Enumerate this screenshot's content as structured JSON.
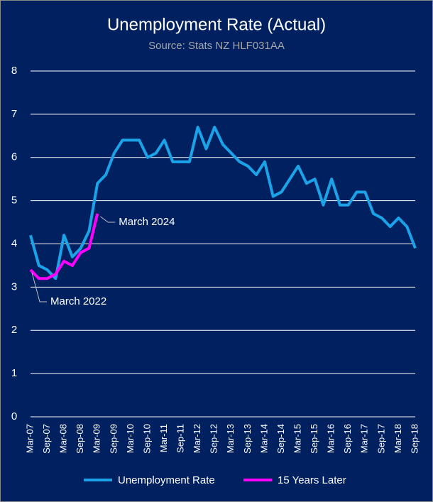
{
  "chart_data": {
    "type": "line",
    "title": "Unemployment Rate (Actual)",
    "subtitle": "Source: Stats NZ HLF031AA",
    "categories": [
      "Mar-07",
      null,
      "Sep-07",
      null,
      "Mar-08",
      null,
      "Sep-08",
      null,
      "Mar-09",
      null,
      "Sep-09",
      null,
      "Mar-10",
      null,
      "Sep-10",
      null,
      "Mar-11",
      null,
      "Sep-11",
      null,
      "Mar-12",
      null,
      "Sep-12",
      null,
      "Mar-13",
      null,
      "Sep-13",
      null,
      "Mar-14",
      null,
      "Sep-14",
      null,
      "Mar-15",
      null,
      "Sep-15",
      null,
      "Mar-16",
      null,
      "Sep-16",
      null,
      "Mar-17",
      null,
      "Sep-17",
      null,
      "Mar-18",
      null,
      "Sep-18"
    ],
    "series": [
      {
        "name": "Unemployment Rate",
        "color": "#1aa3e8",
        "values": [
          4.2,
          3.5,
          3.4,
          3.2,
          4.2,
          3.7,
          3.9,
          4.3,
          5.4,
          5.6,
          6.1,
          6.4,
          6.4,
          6.4,
          6.0,
          6.1,
          6.4,
          5.9,
          5.9,
          5.9,
          6.7,
          6.2,
          6.7,
          6.3,
          6.1,
          5.9,
          5.8,
          5.6,
          5.9,
          5.1,
          5.2,
          5.5,
          5.8,
          5.4,
          5.5,
          4.9,
          5.5,
          4.9,
          4.9,
          5.2,
          5.2,
          4.7,
          4.6,
          4.4,
          4.6,
          4.4,
          3.9
        ]
      },
      {
        "name": "15 Years Later",
        "color": "#ff00ff",
        "values": [
          3.4,
          3.2,
          3.2,
          3.3,
          3.6,
          3.5,
          3.8,
          3.9,
          4.7,
          null,
          null,
          null,
          null,
          null,
          null,
          null,
          null,
          null,
          null,
          null,
          null,
          null,
          null,
          null,
          null,
          null,
          null,
          null,
          null,
          null,
          null,
          null,
          null,
          null,
          null,
          null,
          null,
          null,
          null,
          null,
          null,
          null,
          null,
          null,
          null,
          null,
          null
        ]
      }
    ],
    "annotations": [
      "March 2024",
      "March 2022"
    ],
    "ylim": [
      0,
      8
    ],
    "yticks": [
      0,
      1,
      2,
      3,
      4,
      5,
      6,
      7,
      8
    ],
    "grid": true,
    "legend": "bottom"
  }
}
